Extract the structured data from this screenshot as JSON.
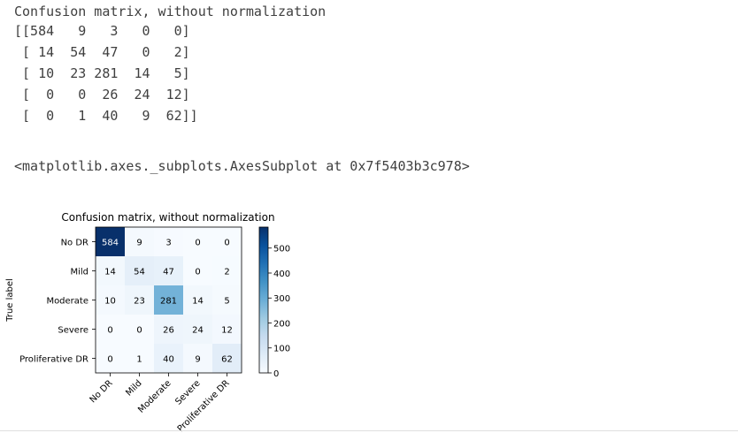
{
  "output": {
    "title_line": "Confusion matrix, without normalization",
    "matrix_lines": [
      "[[584   9   3   0   0]",
      " [ 14  54  47   0   2]",
      " [ 10  23 281  14   5]",
      " [  0   0  26  24  12]",
      " [  0   1  40   9  62]]"
    ],
    "repr_line": "<matplotlib.axes._subplots.AxesSubplot at 0x7f5403b3c978>"
  },
  "chart_data": {
    "type": "heatmap",
    "title": "Confusion matrix, without normalization",
    "ylabel": "True label",
    "xlabel": "",
    "row_labels": [
      "No DR",
      "Mild",
      "Moderate",
      "Severe",
      "Proliferative DR"
    ],
    "col_labels": [
      "No DR",
      "Mild",
      "Moderate",
      "Severe",
      "Proliferative DR"
    ],
    "values": [
      [
        584,
        9,
        3,
        0,
        0
      ],
      [
        14,
        54,
        47,
        0,
        2
      ],
      [
        10,
        23,
        281,
        14,
        5
      ],
      [
        0,
        0,
        26,
        24,
        12
      ],
      [
        0,
        1,
        40,
        9,
        62
      ]
    ],
    "colormap": "Blues",
    "colorbar": {
      "min": 0,
      "max": 584,
      "ticks": [
        0,
        100,
        200,
        300,
        400,
        500
      ]
    },
    "colors": {
      "low": "#f7fbff",
      "high": "#08306b"
    }
  }
}
